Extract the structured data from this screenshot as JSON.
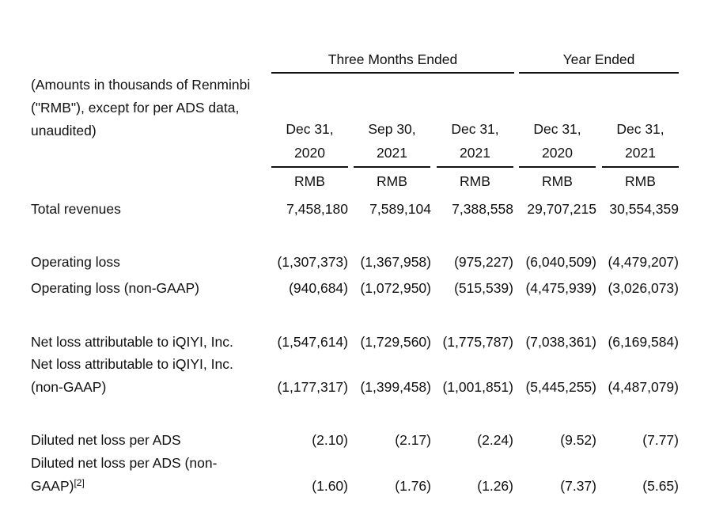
{
  "header": {
    "note_lines": [
      "(Amounts in thousands of Renminbi",
      "(\"RMB\"), except for per ADS data,",
      "unaudited)"
    ],
    "groups": [
      "Three Months Ended",
      "Year Ended"
    ],
    "columns": [
      {
        "line1": "Dec 31,",
        "line2": "2020",
        "currency": "RMB"
      },
      {
        "line1": "Sep 30,",
        "line2": "2021",
        "currency": "RMB"
      },
      {
        "line1": "Dec 31,",
        "line2": "2021",
        "currency": "RMB"
      },
      {
        "line1": "Dec 31,",
        "line2": "2020",
        "currency": "RMB"
      },
      {
        "line1": "Dec 31,",
        "line2": "2021",
        "currency": "RMB"
      }
    ]
  },
  "rows": [
    {
      "label_lines": [
        "Total revenues"
      ],
      "values": [
        "7,458,180",
        "7,589,104",
        "7,388,558",
        "29,707,215",
        "30,554,359"
      ]
    },
    {
      "label_lines": [
        "Operating loss"
      ],
      "values": [
        "(1,307,373)",
        "(1,367,958)",
        "(975,227)",
        "(6,040,509)",
        "(4,479,207)"
      ]
    },
    {
      "label_lines": [
        "Operating loss (non-GAAP)"
      ],
      "values": [
        "(940,684)",
        "(1,072,950)",
        "(515,539)",
        "(4,475,939)",
        "(3,026,073)"
      ]
    },
    {
      "label_lines": [
        "Net loss attributable to iQIYI, Inc."
      ],
      "values": [
        "(1,547,614)",
        "(1,729,560)",
        "(1,775,787)",
        "(7,038,361)",
        "(6,169,584)"
      ]
    },
    {
      "label_lines": [
        "Net loss attributable to iQIYI, Inc.",
        "(non-GAAP)"
      ],
      "values": [
        "(1,177,317)",
        "(1,399,458)",
        "(1,001,851)",
        "(5,445,255)",
        "(4,487,079)"
      ]
    },
    {
      "label_lines": [
        "Diluted net loss per ADS"
      ],
      "values": [
        "(2.10)",
        "(2.17)",
        "(2.24)",
        "(9.52)",
        "(7.77)"
      ]
    },
    {
      "label_lines": [
        "Diluted net loss per ADS (non-",
        "GAAP)"
      ],
      "label_sup": "[2]",
      "values": [
        "(1.60)",
        "(1.76)",
        "(1.26)",
        "(7.37)",
        "(5.65)"
      ]
    }
  ]
}
